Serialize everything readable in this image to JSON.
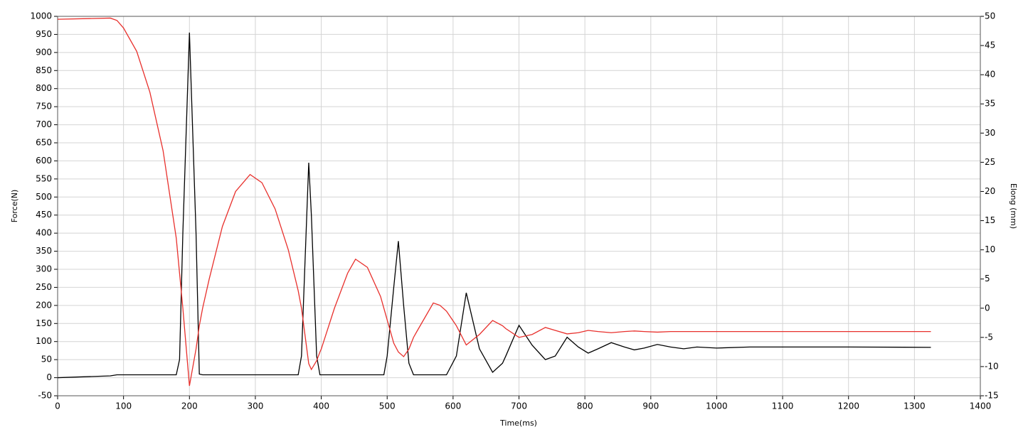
{
  "chart_data": {
    "type": "line",
    "x_label": "Time(ms)",
    "y_label": "Force(N)",
    "y2_label": "Elong (mm)",
    "x": [
      0,
      80,
      90,
      100,
      120,
      140,
      160,
      180,
      185,
      190,
      200,
      210,
      215,
      220,
      230,
      250,
      270,
      292,
      310,
      330,
      350,
      365,
      370,
      381,
      385,
      393,
      398,
      400,
      420,
      440,
      452,
      470,
      490,
      495,
      500,
      510,
      517,
      525,
      533,
      540,
      545,
      570,
      580,
      590,
      605,
      620,
      640,
      660,
      675,
      680,
      700,
      720,
      740,
      755,
      773,
      790,
      805,
      820,
      840,
      860,
      875,
      890,
      910,
      930,
      950,
      970,
      1000,
      1050,
      1100,
      1200,
      1325
    ],
    "series": [
      {
        "name": "Force",
        "color": "#000000",
        "axis": "y",
        "values": [
          0,
          5,
          8,
          8,
          8,
          8,
          8,
          8,
          50,
          400,
          955,
          400,
          10,
          8,
          8,
          8,
          8,
          8,
          8,
          8,
          8,
          8,
          60,
          595,
          450,
          60,
          8,
          8,
          8,
          8,
          8,
          8,
          8,
          8,
          60,
          250,
          378,
          200,
          40,
          8,
          8,
          8,
          8,
          8,
          60,
          235,
          80,
          15,
          40,
          60,
          145,
          90,
          50,
          60,
          112,
          85,
          68,
          80,
          97,
          85,
          77,
          82,
          92,
          85,
          80,
          85,
          82,
          85,
          85,
          85,
          84
        ]
      },
      {
        "name": "Elong",
        "color": "#e8302c",
        "axis": "y2",
        "values": [
          49.5,
          49.7,
          49.3,
          48,
          44,
          37,
          27,
          12,
          6,
          0,
          -13.3,
          -7,
          -3,
          0,
          5,
          14,
          20,
          22.9,
          21.5,
          17,
          10,
          3,
          0,
          -9.5,
          -10.5,
          -9,
          -7.5,
          -7,
          0,
          6,
          8.4,
          7,
          2,
          0,
          -2,
          -6,
          -7.5,
          -8.3,
          -7,
          -5,
          -4,
          0.9,
          0.5,
          -0.5,
          -3,
          -6.3,
          -4.5,
          -2.1,
          -3,
          -3.5,
          -5,
          -4.5,
          -3.3,
          -3.8,
          -4.4,
          -4.2,
          -3.8,
          -4,
          -4.2,
          -4,
          -3.9,
          -4,
          -4.1,
          -4,
          -4,
          -4,
          -4,
          -4,
          -4,
          -4,
          -4
        ]
      }
    ],
    "xlim": [
      0,
      1400
    ],
    "xticks": [
      0,
      100,
      200,
      300,
      400,
      500,
      600,
      700,
      800,
      900,
      1000,
      1100,
      1200,
      1300,
      1400
    ],
    "ylim": [
      -50,
      1000
    ],
    "yticks": [
      -50,
      0,
      50,
      100,
      150,
      200,
      250,
      300,
      350,
      400,
      450,
      500,
      550,
      600,
      650,
      700,
      750,
      800,
      850,
      900,
      950,
      1000
    ],
    "y2lim": [
      -15,
      50
    ],
    "y2ticks": [
      -15,
      -10,
      -5,
      0,
      5,
      10,
      15,
      20,
      25,
      30,
      35,
      40,
      45,
      50
    ],
    "grid": true
  }
}
